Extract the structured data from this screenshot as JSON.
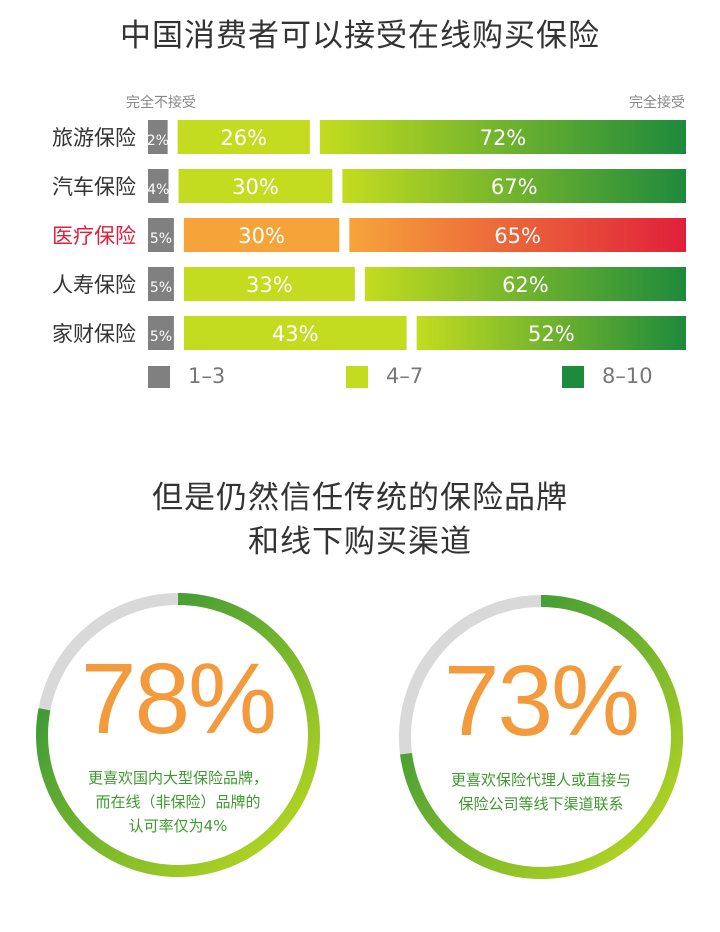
{
  "title": "中国消费者可以接受在线购买保险",
  "scale": {
    "left": "完全不接受",
    "right": "完全接受"
  },
  "chart_data": {
    "type": "bar",
    "stacked": true,
    "orientation": "horizontal",
    "categories": [
      "旅游保险",
      "汽车保险",
      "医疗保险",
      "人寿保险",
      "家财保险"
    ],
    "highlight_category": "医疗保险",
    "series": [
      {
        "name": "1–3",
        "values": [
          2,
          4,
          5,
          5,
          5
        ],
        "color": "#808080"
      },
      {
        "name": "4–7",
        "values": [
          26,
          30,
          30,
          33,
          43
        ],
        "color": "#c3dc1f"
      },
      {
        "name": "8–10",
        "values": [
          72,
          67,
          65,
          62,
          52
        ],
        "color": "#1e8a3c"
      }
    ],
    "value_labels": [
      [
        "2%",
        "26%",
        "72%"
      ],
      [
        "4%",
        "30%",
        "67%"
      ],
      [
        "5%",
        "30%",
        "65%"
      ],
      [
        "5%",
        "33%",
        "62%"
      ],
      [
        "5%",
        "43%",
        "52%"
      ]
    ],
    "highlight_colors": [
      "#808080",
      "#f6a43a",
      "#e0203a"
    ],
    "unit": "%"
  },
  "legend": [
    {
      "label": "1–3",
      "color": "#808080"
    },
    {
      "label": "4–7",
      "color": "#c3dc1f"
    },
    {
      "label": "8–10",
      "color": "#1e8a3c"
    }
  ],
  "subtitle": {
    "line1": "但是仍然信任传统的保险品牌",
    "line2": "和线下购买渠道"
  },
  "rings": [
    {
      "value": "78%",
      "percent": 78,
      "desc": [
        "更喜欢国内大型保险品牌，",
        "而在线（非保险）品牌的",
        "认可率仅为4%"
      ]
    },
    {
      "value": "73%",
      "percent": 73,
      "desc": [
        "更喜欢保险代理人或直接与",
        "保险公司等线下渠道联系"
      ]
    }
  ],
  "colors": {
    "gray": "#808080",
    "lime": "#c3dc1f",
    "green": "#1e8a3c",
    "orange": "#f6a43a",
    "red": "#e0203a",
    "ring_track": "#d9d9d9",
    "ring_value": "#f29a3c",
    "ring_text": "#3d9a2d"
  }
}
